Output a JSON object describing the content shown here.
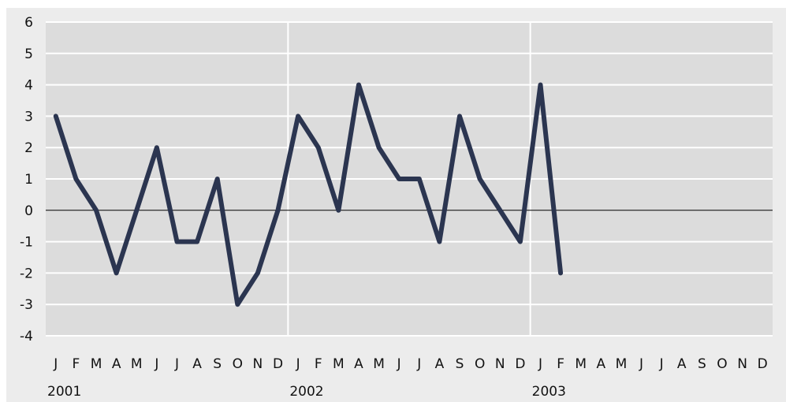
{
  "chart_data": {
    "type": "line",
    "title": "",
    "xlabel": "",
    "ylabel": "",
    "ylim": [
      -4,
      6
    ],
    "yticks": [
      "6",
      "5",
      "4",
      "3",
      "2",
      "1",
      "0",
      "-1",
      "-2",
      "-3",
      "-4"
    ],
    "month_labels": [
      "J",
      "F",
      "M",
      "A",
      "M",
      "J",
      "J",
      "A",
      "S",
      "O",
      "N",
      "D",
      "J",
      "F",
      "M",
      "A",
      "M",
      "J",
      "J",
      "A",
      "S",
      "O",
      "N",
      "D",
      "J",
      "F",
      "M",
      "A",
      "M",
      "J",
      "J",
      "A",
      "S",
      "O",
      "N",
      "D"
    ],
    "year_labels": [
      "2001",
      "2002",
      "2003"
    ],
    "grid": true,
    "series": [
      {
        "color": "#2b3550",
        "values": [
          3,
          1,
          0,
          -2,
          0,
          2,
          -1,
          -1,
          1,
          -3,
          -2,
          0,
          3,
          2,
          0,
          4,
          2,
          1,
          1,
          -1,
          3,
          1,
          0,
          -1,
          4,
          -2
        ]
      }
    ]
  }
}
